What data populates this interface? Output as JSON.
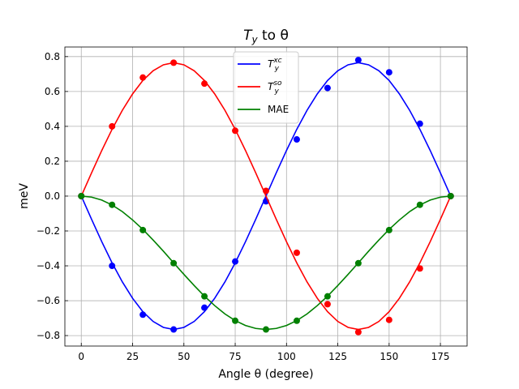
{
  "chart_data": {
    "type": "line",
    "title_main": "T",
    "title_sub": "y",
    "title_rest": " to θ",
    "xlabel": "Angle θ (degree)",
    "ylabel": "meV",
    "xlim": [
      -8,
      188
    ],
    "ylim": [
      -0.86,
      0.855
    ],
    "xticks": [
      0,
      25,
      50,
      75,
      100,
      125,
      150,
      175
    ],
    "yticks": [
      -0.8,
      -0.6,
      -0.4,
      -0.2,
      0.0,
      0.2,
      0.4,
      0.6,
      0.8
    ],
    "ytick_labels": [
      "−0.8",
      "−0.6",
      "−0.4",
      "−0.2",
      "0.0",
      "0.2",
      "0.4",
      "0.6",
      "0.8"
    ],
    "grid": true,
    "legend_position": "top-center",
    "series": [
      {
        "name_main": "T",
        "name_sub": "y",
        "name_sup": "xc",
        "color": "#0000ff",
        "curve_formula": "-0.765*sin(2θ)",
        "curve_x": [
          0,
          5,
          10,
          15,
          20,
          25,
          30,
          35,
          40,
          45,
          50,
          55,
          60,
          65,
          70,
          75,
          80,
          85,
          90,
          95,
          100,
          105,
          110,
          115,
          120,
          125,
          130,
          135,
          140,
          145,
          150,
          155,
          160,
          165,
          170,
          175,
          180
        ],
        "curve_y": [
          0,
          -0.133,
          -0.262,
          -0.383,
          -0.492,
          -0.586,
          -0.663,
          -0.719,
          -0.753,
          -0.765,
          -0.753,
          -0.719,
          -0.663,
          -0.586,
          -0.492,
          -0.383,
          -0.262,
          -0.133,
          0,
          0.133,
          0.262,
          0.383,
          0.492,
          0.586,
          0.663,
          0.719,
          0.753,
          0.765,
          0.753,
          0.719,
          0.663,
          0.586,
          0.492,
          0.383,
          0.262,
          0.133,
          0
        ],
        "points_x": [
          0,
          15,
          30,
          45,
          60,
          75,
          90,
          105,
          120,
          135,
          150,
          165,
          180
        ],
        "points_y": [
          0.0,
          -0.4,
          -0.68,
          -0.765,
          -0.64,
          -0.375,
          -0.03,
          0.325,
          0.62,
          0.78,
          0.71,
          0.415,
          0.0
        ]
      },
      {
        "name_main": "T",
        "name_sub": "y",
        "name_sup": "so",
        "color": "#ff0000",
        "curve_formula": "0.765*sin(2θ)",
        "curve_x": [
          0,
          5,
          10,
          15,
          20,
          25,
          30,
          35,
          40,
          45,
          50,
          55,
          60,
          65,
          70,
          75,
          80,
          85,
          90,
          95,
          100,
          105,
          110,
          115,
          120,
          125,
          130,
          135,
          140,
          145,
          150,
          155,
          160,
          165,
          170,
          175,
          180
        ],
        "curve_y": [
          0,
          0.133,
          0.262,
          0.383,
          0.492,
          0.586,
          0.663,
          0.719,
          0.753,
          0.765,
          0.753,
          0.719,
          0.663,
          0.586,
          0.492,
          0.383,
          0.262,
          0.133,
          0,
          -0.133,
          -0.262,
          -0.383,
          -0.492,
          -0.586,
          -0.663,
          -0.719,
          -0.753,
          -0.765,
          -0.753,
          -0.719,
          -0.663,
          -0.586,
          -0.492,
          -0.383,
          -0.262,
          -0.133,
          0
        ],
        "points_x": [
          0,
          15,
          30,
          45,
          60,
          75,
          90,
          105,
          120,
          135,
          150,
          165,
          180
        ],
        "points_y": [
          0.0,
          0.4,
          0.68,
          0.765,
          0.645,
          0.375,
          0.03,
          -0.325,
          -0.62,
          -0.78,
          -0.71,
          -0.415,
          0.0
        ]
      },
      {
        "name_main": "MAE",
        "name_sub": "",
        "name_sup": "",
        "color": "#008000",
        "curve_formula": "-0.765*sin²(θ)",
        "curve_x": [
          0,
          5,
          10,
          15,
          20,
          25,
          30,
          35,
          40,
          45,
          50,
          55,
          60,
          65,
          70,
          75,
          80,
          85,
          90,
          95,
          100,
          105,
          110,
          115,
          120,
          125,
          130,
          135,
          140,
          145,
          150,
          155,
          160,
          165,
          170,
          175,
          180
        ],
        "curve_y": [
          0,
          -0.006,
          -0.023,
          -0.051,
          -0.089,
          -0.137,
          -0.191,
          -0.252,
          -0.316,
          -0.383,
          -0.449,
          -0.513,
          -0.574,
          -0.628,
          -0.676,
          -0.714,
          -0.742,
          -0.759,
          -0.765,
          -0.759,
          -0.742,
          -0.714,
          -0.676,
          -0.628,
          -0.574,
          -0.513,
          -0.449,
          -0.383,
          -0.316,
          -0.252,
          -0.191,
          -0.137,
          -0.089,
          -0.051,
          -0.023,
          -0.006,
          0
        ],
        "points_x": [
          0,
          15,
          30,
          45,
          60,
          75,
          90,
          105,
          120,
          135,
          150,
          165,
          180
        ],
        "points_y": [
          0.0,
          -0.05,
          -0.195,
          -0.385,
          -0.575,
          -0.715,
          -0.765,
          -0.715,
          -0.575,
          -0.385,
          -0.195,
          -0.05,
          0.0
        ]
      }
    ]
  }
}
